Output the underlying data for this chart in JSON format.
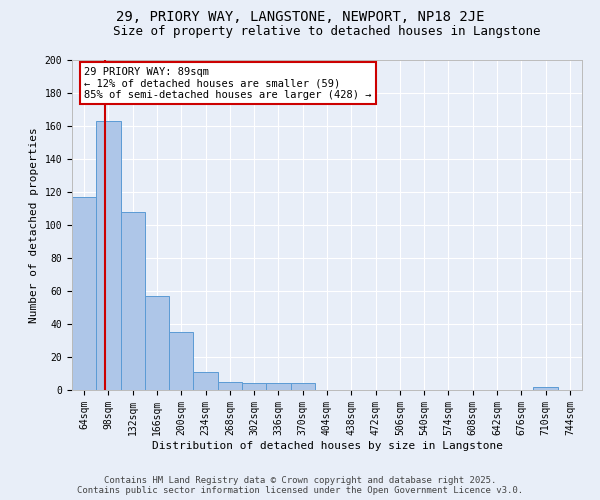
{
  "title_line1": "29, PRIORY WAY, LANGSTONE, NEWPORT, NP18 2JE",
  "title_line2": "Size of property relative to detached houses in Langstone",
  "xlabel": "Distribution of detached houses by size in Langstone",
  "ylabel": "Number of detached properties",
  "categories": [
    "64sqm",
    "98sqm",
    "132sqm",
    "166sqm",
    "200sqm",
    "234sqm",
    "268sqm",
    "302sqm",
    "336sqm",
    "370sqm",
    "404sqm",
    "438sqm",
    "472sqm",
    "506sqm",
    "540sqm",
    "574sqm",
    "608sqm",
    "642sqm",
    "676sqm",
    "710sqm",
    "744sqm"
  ],
  "values": [
    117,
    163,
    108,
    57,
    35,
    11,
    5,
    4,
    4,
    4,
    0,
    0,
    0,
    0,
    0,
    0,
    0,
    0,
    0,
    2,
    0
  ],
  "bar_color": "#aec6e8",
  "bar_edge_color": "#5b9bd5",
  "background_color": "#e8eef8",
  "grid_color": "#ffffff",
  "vline_x": 0.85,
  "vline_color": "#cc0000",
  "annotation_text": "29 PRIORY WAY: 89sqm\n← 12% of detached houses are smaller (59)\n85% of semi-detached houses are larger (428) →",
  "annotation_box_color": "#ffffff",
  "annotation_box_edge": "#cc0000",
  "ylim": [
    0,
    200
  ],
  "yticks": [
    0,
    20,
    40,
    60,
    80,
    100,
    120,
    140,
    160,
    180,
    200
  ],
  "footer_line1": "Contains HM Land Registry data © Crown copyright and database right 2025.",
  "footer_line2": "Contains public sector information licensed under the Open Government Licence v3.0.",
  "title_fontsize": 10,
  "subtitle_fontsize": 9,
  "axis_fontsize": 8,
  "tick_fontsize": 7,
  "footer_fontsize": 6.5,
  "annotation_fontsize": 7.5
}
